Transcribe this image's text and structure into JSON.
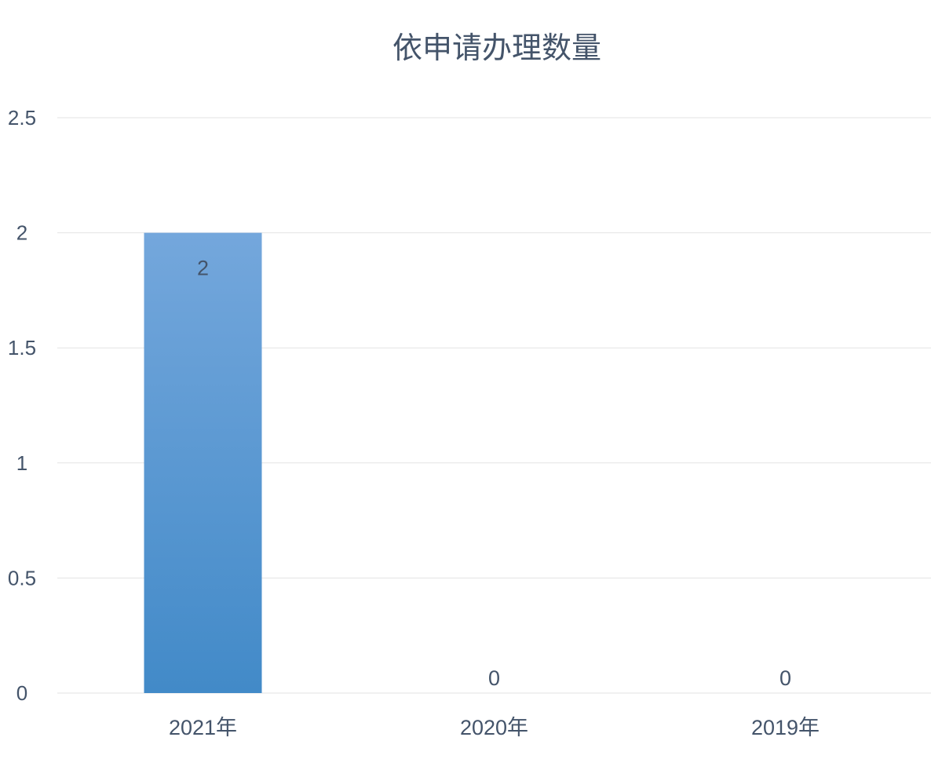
{
  "chart_data": {
    "type": "bar",
    "title": "依申请办理数量",
    "categories": [
      "2021年",
      "2020年",
      "2019年"
    ],
    "values": [
      2,
      0,
      0
    ],
    "data_labels": [
      "2",
      "0",
      "0"
    ],
    "ylim": [
      0,
      2.5
    ],
    "yticks": [
      "0",
      "0.5",
      "1",
      "1.5",
      "2",
      "2.5"
    ],
    "grid": true,
    "legend": "none",
    "colors": {
      "bar_top": "#74a7dc",
      "bar_bottom": "#428ac8",
      "grid": "#e3e3e3",
      "text": "#44546a"
    }
  }
}
